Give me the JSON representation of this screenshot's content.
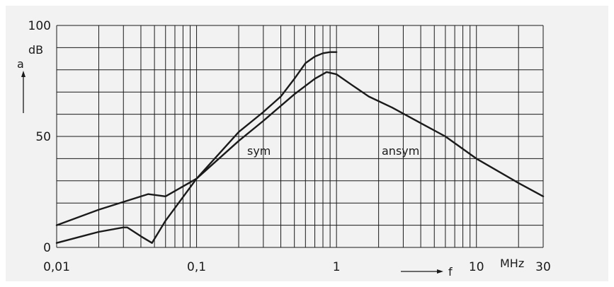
{
  "chart_data": {
    "type": "line",
    "title": "",
    "xlabel": "f",
    "ylabel": "a",
    "y_unit": "dB",
    "x_unit": "MHz",
    "x_scale": "log",
    "xlim": [
      0.01,
      30
    ],
    "ylim": [
      0,
      100
    ],
    "grid": true,
    "x_tick_labels": [
      "0,01",
      "0,1",
      "1",
      "10",
      "30"
    ],
    "x_tick_values": [
      0.01,
      0.1,
      1,
      10,
      30
    ],
    "y_tick_labels": [
      "0",
      "50",
      "100"
    ],
    "y_tick_values": [
      0,
      50,
      100
    ],
    "series": [
      {
        "name": "sym",
        "x": [
          0.01,
          0.02,
          0.03,
          0.032,
          0.04,
          0.048,
          0.06,
          0.1,
          0.2,
          0.3,
          0.4,
          0.5,
          0.6,
          0.7,
          0.8,
          0.9,
          1.0
        ],
        "y": [
          2,
          7,
          9,
          9,
          5,
          2,
          12,
          31,
          52,
          61,
          68,
          76,
          83,
          86,
          87.5,
          88,
          88
        ]
      },
      {
        "name": "ansym",
        "x": [
          0.01,
          0.02,
          0.045,
          0.06,
          0.1,
          0.2,
          0.3,
          0.5,
          0.7,
          0.85,
          1.0,
          1.3,
          1.7,
          2.5,
          4.0,
          6.0,
          10.0,
          20.0,
          30.0
        ],
        "y": [
          10,
          17,
          24,
          23,
          31,
          48,
          57,
          69,
          76,
          79,
          78,
          73,
          68,
          63,
          56,
          50,
          40,
          29,
          23
        ]
      }
    ]
  }
}
